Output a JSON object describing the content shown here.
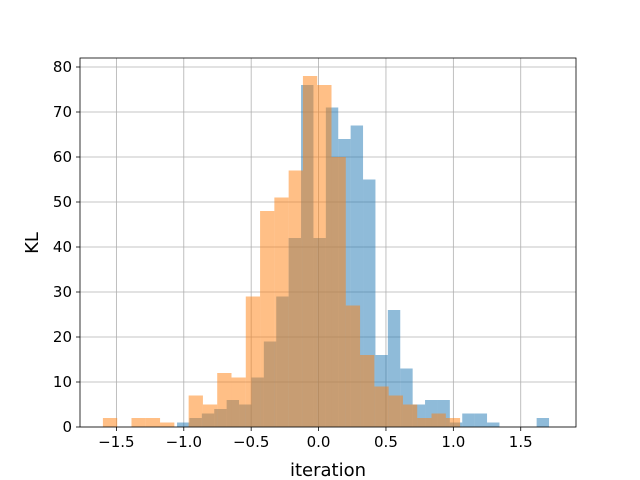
{
  "chart_data": {
    "type": "bar",
    "title": "",
    "xlabel": "iteration",
    "ylabel": "KL",
    "xlim": [
      -1.77,
      1.91
    ],
    "ylim": [
      0,
      82
    ],
    "xticks": [
      -1.5,
      -1.0,
      -0.5,
      0.0,
      0.5,
      1.0,
      1.5
    ],
    "xtick_labels": [
      "−1.5",
      "−1.0",
      "−0.5",
      "0.0",
      "0.5",
      "1.0",
      "1.5"
    ],
    "yticks": [
      0,
      10,
      20,
      30,
      40,
      50,
      60,
      70,
      80
    ],
    "ytick_labels": [
      "0",
      "10",
      "20",
      "30",
      "40",
      "50",
      "60",
      "70",
      "80"
    ],
    "grid": true,
    "legend": false,
    "series": [
      {
        "color": "#1f77b4",
        "alpha": 0.5,
        "bin_width": 0.092,
        "bins": [
          [
            -1.05,
            1
          ],
          [
            -0.958,
            2
          ],
          [
            -0.866,
            3
          ],
          [
            -0.774,
            4
          ],
          [
            -0.682,
            6
          ],
          [
            -0.59,
            5
          ],
          [
            -0.498,
            11
          ],
          [
            -0.406,
            19
          ],
          [
            -0.314,
            29
          ],
          [
            -0.222,
            42
          ],
          [
            -0.13,
            76
          ],
          [
            -0.038,
            42
          ],
          [
            0.054,
            71
          ],
          [
            0.146,
            64
          ],
          [
            0.238,
            67
          ],
          [
            0.33,
            55
          ],
          [
            0.422,
            16
          ],
          [
            0.514,
            26
          ],
          [
            0.606,
            13
          ],
          [
            0.698,
            5
          ],
          [
            0.79,
            6
          ],
          [
            0.882,
            6
          ],
          [
            0.974,
            1
          ],
          [
            1.066,
            3
          ],
          [
            1.158,
            3
          ],
          [
            1.25,
            1
          ],
          [
            1.342,
            0
          ],
          [
            1.434,
            0
          ],
          [
            1.526,
            0
          ],
          [
            1.618,
            2
          ]
        ]
      },
      {
        "color": "#ff7f0e",
        "alpha": 0.5,
        "bin_width": 0.106,
        "bins": [
          [
            -1.6,
            2
          ],
          [
            -1.494,
            0
          ],
          [
            -1.388,
            2
          ],
          [
            -1.282,
            2
          ],
          [
            -1.176,
            1
          ],
          [
            -1.07,
            0
          ],
          [
            -0.964,
            7
          ],
          [
            -0.858,
            5
          ],
          [
            -0.752,
            12
          ],
          [
            -0.646,
            11
          ],
          [
            -0.54,
            29
          ],
          [
            -0.434,
            48
          ],
          [
            -0.328,
            51
          ],
          [
            -0.222,
            57
          ],
          [
            -0.116,
            78
          ],
          [
            -0.01,
            76
          ],
          [
            0.096,
            60
          ],
          [
            0.202,
            27
          ],
          [
            0.308,
            16
          ],
          [
            0.414,
            9
          ],
          [
            0.52,
            7
          ],
          [
            0.626,
            5
          ],
          [
            0.732,
            2
          ],
          [
            0.838,
            3
          ],
          [
            0.944,
            2
          ]
        ]
      }
    ]
  }
}
